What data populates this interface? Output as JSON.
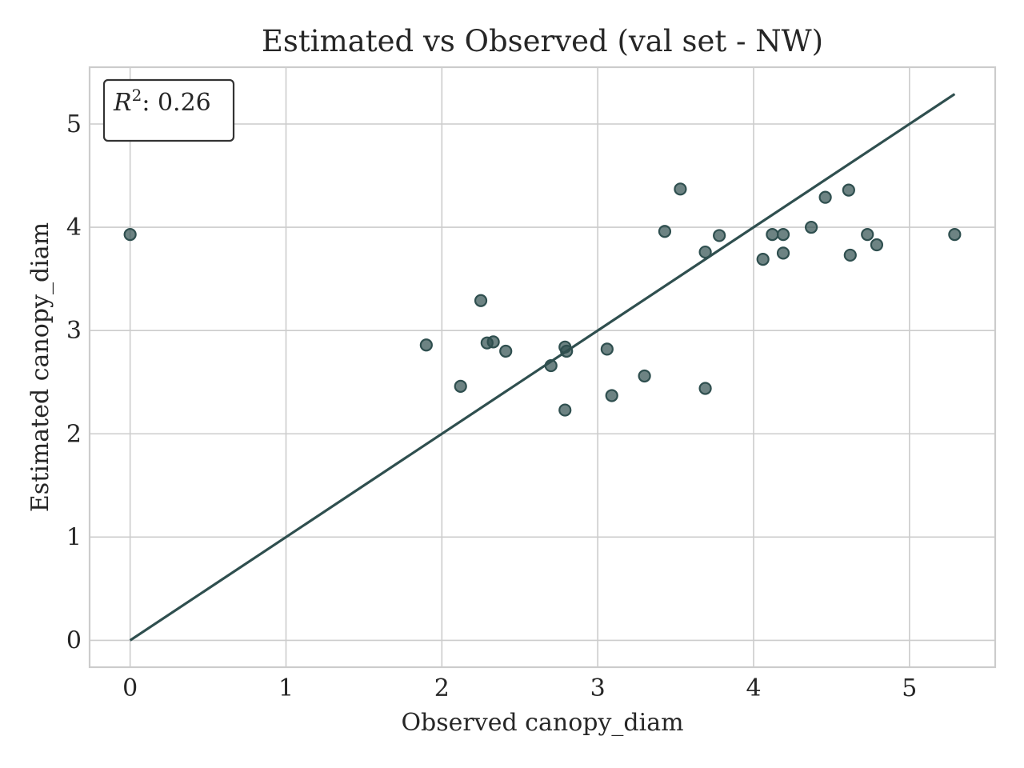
{
  "chart_data": {
    "type": "scatter",
    "title": "Estimated vs Observed (val set - NW)",
    "xlabel": "Observed canopy_diam",
    "ylabel": "Estimated canopy_diam",
    "xlim": [
      -0.26,
      5.55
    ],
    "ylim": [
      -0.26,
      5.55
    ],
    "xticks": [
      0,
      1,
      2,
      3,
      4,
      5
    ],
    "yticks": [
      0,
      1,
      2,
      3,
      4,
      5
    ],
    "grid": true,
    "annotation": {
      "prefix": "R",
      "superscript": "2",
      "text": ": 0.26",
      "position": "top-left"
    },
    "reference_line": {
      "x": [
        0,
        5.29
      ],
      "y": [
        0,
        5.29
      ],
      "color": "#2f4f4f"
    },
    "marker_color": "#2f4f4f",
    "points": [
      {
        "x": 0.0,
        "y": 3.93
      },
      {
        "x": 1.9,
        "y": 2.86
      },
      {
        "x": 2.12,
        "y": 2.46
      },
      {
        "x": 2.25,
        "y": 3.29
      },
      {
        "x": 2.29,
        "y": 2.88
      },
      {
        "x": 2.33,
        "y": 2.89
      },
      {
        "x": 2.41,
        "y": 2.8
      },
      {
        "x": 2.7,
        "y": 2.66
      },
      {
        "x": 2.79,
        "y": 2.84
      },
      {
        "x": 2.8,
        "y": 2.8
      },
      {
        "x": 2.79,
        "y": 2.23
      },
      {
        "x": 3.06,
        "y": 2.82
      },
      {
        "x": 3.09,
        "y": 2.37
      },
      {
        "x": 3.3,
        "y": 2.56
      },
      {
        "x": 3.43,
        "y": 3.96
      },
      {
        "x": 3.53,
        "y": 4.37
      },
      {
        "x": 3.69,
        "y": 3.76
      },
      {
        "x": 3.69,
        "y": 2.44
      },
      {
        "x": 3.78,
        "y": 3.92
      },
      {
        "x": 4.06,
        "y": 3.69
      },
      {
        "x": 4.12,
        "y": 3.93
      },
      {
        "x": 4.19,
        "y": 3.93
      },
      {
        "x": 4.19,
        "y": 3.75
      },
      {
        "x": 4.37,
        "y": 4.0
      },
      {
        "x": 4.46,
        "y": 4.29
      },
      {
        "x": 4.61,
        "y": 4.36
      },
      {
        "x": 4.62,
        "y": 3.73
      },
      {
        "x": 4.73,
        "y": 3.93
      },
      {
        "x": 4.79,
        "y": 3.83
      },
      {
        "x": 5.29,
        "y": 3.93
      }
    ]
  }
}
